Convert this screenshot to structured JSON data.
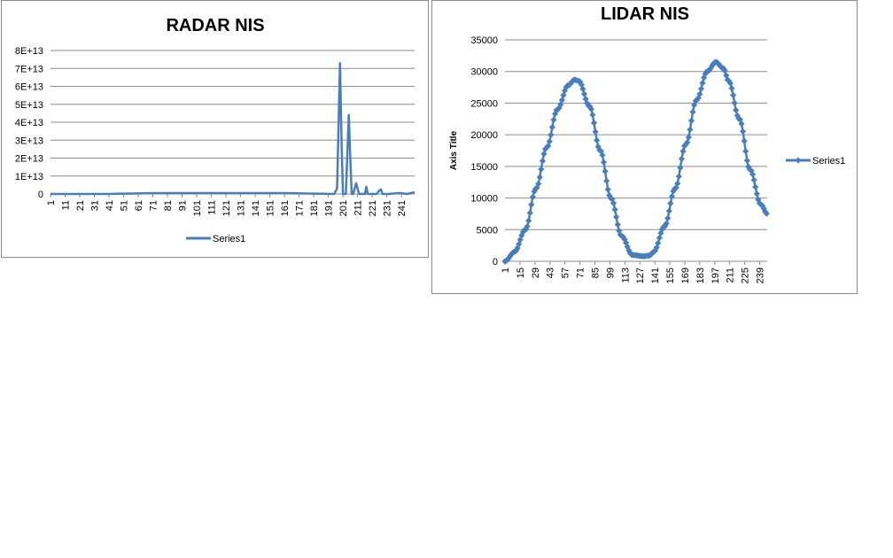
{
  "chart_data": [
    {
      "type": "line",
      "title": "RADAR NIS",
      "xlabel": "",
      "ylabel": "",
      "ylim": [
        0,
        80000000000000.0
      ],
      "xlim": [
        1,
        250
      ],
      "y_ticks": [
        "0",
        "1E+13",
        "2E+13",
        "3E+13",
        "4E+13",
        "5E+13",
        "6E+13",
        "7E+13",
        "8E+13"
      ],
      "x_ticks": [
        "1",
        "11",
        "21",
        "31",
        "41",
        "51",
        "61",
        "71",
        "81",
        "91",
        "101",
        "111",
        "121",
        "131",
        "141",
        "151",
        "161",
        "171",
        "181",
        "191",
        "201",
        "211",
        "221",
        "231",
        "241"
      ],
      "legend": "bottom",
      "grid": true,
      "color": "#4a7ebb",
      "series": [
        {
          "name": "Series1",
          "x": [
            1,
            40,
            75,
            110,
            150,
            160,
            195,
            197,
            199,
            200,
            201,
            203,
            205,
            206,
            207,
            208,
            210,
            212,
            214,
            216,
            217,
            218,
            220,
            224,
            226,
            227,
            228,
            232,
            240,
            245,
            250
          ],
          "values": [
            0,
            0,
            500000000000.0,
            500000000000.0,
            500000000000.0,
            500000000000.0,
            0,
            3000000000000.0,
            73000000000000.0,
            30000000000000.0,
            0,
            0,
            44000000000000.0,
            20000000000000.0,
            0,
            0,
            6000000000000.0,
            0,
            0,
            0,
            4000000000000.0,
            0,
            0,
            0,
            2000000000000.0,
            2500000000000.0,
            0,
            0,
            500000000000.0,
            0,
            1000000000000.0
          ]
        }
      ]
    },
    {
      "type": "line",
      "title": "LIDAR NIS",
      "xlabel": "",
      "ylabel": "Axis Title",
      "ylim": [
        0,
        35000
      ],
      "xlim": [
        1,
        246
      ],
      "y_ticks": [
        "0",
        "5000",
        "10000",
        "15000",
        "20000",
        "25000",
        "30000",
        "35000"
      ],
      "x_ticks": [
        "1",
        "15",
        "29",
        "43",
        "57",
        "71",
        "85",
        "99",
        "113",
        "127",
        "141",
        "155",
        "169",
        "183",
        "197",
        "211",
        "225",
        "239"
      ],
      "legend": "right",
      "grid": true,
      "color": "#4a7ebb",
      "series": [
        {
          "name": "Series1",
          "x": [
            1,
            10,
            20,
            30,
            40,
            50,
            60,
            66,
            70,
            80,
            90,
            100,
            110,
            120,
            130,
            136,
            140,
            150,
            160,
            170,
            180,
            190,
            198,
            205,
            210,
            220,
            230,
            240,
            246
          ],
          "values": [
            0,
            1500,
            5000,
            11500,
            18000,
            24000,
            27800,
            28700,
            28500,
            24500,
            17500,
            10000,
            4000,
            1000,
            800,
            900,
            1500,
            5500,
            11500,
            18500,
            25500,
            30000,
            31500,
            30500,
            28500,
            22500,
            14500,
            9000,
            7500
          ]
        }
      ]
    }
  ]
}
